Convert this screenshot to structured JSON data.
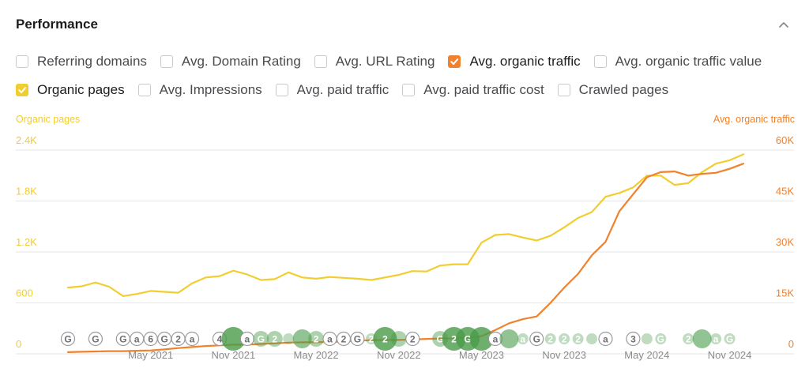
{
  "title": "Performance",
  "collapse_icon": "chevron-up-icon",
  "metrics": [
    [
      {
        "label": "Referring domains",
        "checked": false,
        "color": ""
      },
      {
        "label": "Avg. Domain Rating",
        "checked": false,
        "color": ""
      },
      {
        "label": "Avg. URL Rating",
        "checked": false,
        "color": ""
      },
      {
        "label": "Avg. organic traffic",
        "checked": true,
        "color": "#f0812d"
      },
      {
        "label": "Avg. organic traffic value",
        "checked": false,
        "color": ""
      }
    ],
    [
      {
        "label": "Organic pages",
        "checked": true,
        "color": "#f2cd30"
      },
      {
        "label": "Avg. Impressions",
        "checked": false,
        "color": ""
      },
      {
        "label": "Avg. paid traffic",
        "checked": false,
        "color": ""
      },
      {
        "label": "Avg. paid traffic cost",
        "checked": false,
        "color": ""
      },
      {
        "label": "Crawled pages",
        "checked": false,
        "color": ""
      }
    ]
  ],
  "colors": {
    "organic_pages": "#f2cd30",
    "organic_traffic": "#f0812d",
    "grid": "#e6e6e6",
    "axis_text_month": "#8a8a8e",
    "marker_green": "#4a9b4a"
  },
  "chart_data": {
    "type": "line",
    "left_axis_title": "Organic pages",
    "right_axis_title": "Avg. organic traffic",
    "left_ticks": [
      "0",
      "600",
      "1.2K",
      "1.8K",
      "2.4K"
    ],
    "right_ticks": [
      "0",
      "15K",
      "30K",
      "45K",
      "60K"
    ],
    "left_ylim": [
      0,
      2400
    ],
    "right_ylim": [
      0,
      60000
    ],
    "grid": true,
    "x_labels": [
      "May 2021",
      "Nov 2021",
      "May 2022",
      "Nov 2022",
      "May 2023",
      "Nov 2023",
      "May 2024",
      "Nov 2024"
    ],
    "x_range": [
      "Nov 2020",
      "Dec 2024"
    ],
    "series": [
      {
        "name": "Organic pages",
        "axis": "left",
        "color": "#f2cd30",
        "x": [
          "Nov 2020",
          "Dec 2020",
          "Jan 2021",
          "Feb 2021",
          "Mar 2021",
          "Apr 2021",
          "May 2021",
          "Jun 2021",
          "Jul 2021",
          "Aug 2021",
          "Sep 2021",
          "Oct 2021",
          "Nov 2021",
          "Dec 2021",
          "Jan 2022",
          "Feb 2022",
          "Mar 2022",
          "Apr 2022",
          "May 2022",
          "Jun 2022",
          "Jul 2022",
          "Aug 2022",
          "Sep 2022",
          "Oct 2022",
          "Nov 2022",
          "Dec 2022",
          "Jan 2023",
          "Feb 2023",
          "Mar 2023",
          "Apr 2023",
          "May 2023",
          "Jun 2023",
          "Jul 2023",
          "Aug 2023",
          "Sep 2023",
          "Oct 2023",
          "Nov 2023",
          "Dec 2023",
          "Jan 2024",
          "Feb 2024",
          "Mar 2024",
          "Apr 2024",
          "May 2024",
          "Jun 2024",
          "Jul 2024",
          "Aug 2024",
          "Sep 2024",
          "Oct 2024",
          "Nov 2024",
          "Dec 2024"
        ],
        "values": [
          780,
          795,
          840,
          790,
          680,
          705,
          740,
          730,
          720,
          830,
          900,
          915,
          980,
          935,
          870,
          880,
          960,
          900,
          885,
          905,
          895,
          885,
          870,
          900,
          930,
          975,
          970,
          1040,
          1055,
          1055,
          1310,
          1400,
          1410,
          1370,
          1335,
          1390,
          1490,
          1600,
          1670,
          1850,
          1895,
          1960,
          2100,
          2100,
          1990,
          2010,
          2140,
          2240,
          2280,
          2350
        ]
      },
      {
        "name": "Avg. organic traffic",
        "axis": "right",
        "color": "#f0812d",
        "x": [
          "Nov 2020",
          "Dec 2020",
          "Jan 2021",
          "Feb 2021",
          "Mar 2021",
          "Apr 2021",
          "May 2021",
          "Jun 2021",
          "Jul 2021",
          "Aug 2021",
          "Sep 2021",
          "Oct 2021",
          "Nov 2021",
          "Dec 2021",
          "Jan 2022",
          "Feb 2022",
          "Mar 2022",
          "Apr 2022",
          "May 2022",
          "Jun 2022",
          "Jul 2022",
          "Aug 2022",
          "Sep 2022",
          "Oct 2022",
          "Nov 2022",
          "Dec 2022",
          "Jan 2023",
          "Feb 2023",
          "Mar 2023",
          "Apr 2023",
          "May 2023",
          "Jun 2023",
          "Jul 2023",
          "Aug 2023",
          "Sep 2023",
          "Oct 2023",
          "Nov 2023",
          "Dec 2023",
          "Jan 2024",
          "Feb 2024",
          "Mar 2024",
          "Apr 2024",
          "May 2024",
          "Jun 2024",
          "Jul 2024",
          "Aug 2024",
          "Sep 2024",
          "Oct 2024",
          "Nov 2024",
          "Dec 2024"
        ],
        "values": [
          500,
          600,
          700,
          800,
          800,
          900,
          1000,
          1300,
          1700,
          2000,
          2300,
          2500,
          2700,
          2700,
          2900,
          3100,
          3300,
          3400,
          3400,
          3500,
          3600,
          3900,
          4000,
          4100,
          4100,
          4200,
          4400,
          4500,
          4600,
          4800,
          5200,
          7000,
          9000,
          10200,
          11000,
          15000,
          19500,
          23500,
          29000,
          33000,
          42000,
          47000,
          52000,
          53500,
          53700,
          52500,
          53000,
          53300,
          54500,
          56000
        ]
      }
    ],
    "annotations": [
      {
        "date": "Nov 2020",
        "label": "G",
        "kind": "update"
      },
      {
        "date": "Jan 2021",
        "label": "G",
        "kind": "update"
      },
      {
        "date": "Mar 2021",
        "label": "G",
        "kind": "update"
      },
      {
        "date": "Apr 2021",
        "label": "a",
        "kind": "update"
      },
      {
        "date": "May 2021",
        "label": "6",
        "kind": "update"
      },
      {
        "date": "Jun 2021",
        "label": "G",
        "kind": "update"
      },
      {
        "date": "Jul 2021",
        "label": "2",
        "kind": "update"
      },
      {
        "date": "Aug 2021",
        "label": "a",
        "kind": "update"
      },
      {
        "date": "Oct 2021",
        "label": "4",
        "kind": "update"
      },
      {
        "date": "Nov 2021",
        "label": "",
        "kind": "dot",
        "size": 3
      },
      {
        "date": "Dec 2021",
        "label": "a",
        "kind": "update"
      },
      {
        "date": "Jan 2022",
        "label": "G",
        "kind": "dot",
        "size": 1
      },
      {
        "date": "Feb 2022",
        "label": "2",
        "kind": "dot",
        "size": 1
      },
      {
        "date": "Mar 2022",
        "label": "",
        "kind": "dot",
        "size": 0
      },
      {
        "date": "Apr 2022",
        "label": "",
        "kind": "dot",
        "size": 2
      },
      {
        "date": "May 2022",
        "label": "2",
        "kind": "dot",
        "size": 1
      },
      {
        "date": "Jun 2022",
        "label": "a",
        "kind": "update"
      },
      {
        "date": "Jul 2022",
        "label": "2",
        "kind": "update"
      },
      {
        "date": "Aug 2022",
        "label": "G",
        "kind": "update"
      },
      {
        "date": "Sep 2022",
        "label": "2",
        "kind": "dot",
        "size": 0
      },
      {
        "date": "Oct 2022",
        "label": "2",
        "kind": "dot",
        "size": 3
      },
      {
        "date": "Nov 2022",
        "label": "",
        "kind": "dot",
        "size": 1
      },
      {
        "date": "Dec 2022",
        "label": "2",
        "kind": "update"
      },
      {
        "date": "Feb 2023",
        "label": "G",
        "kind": "dot",
        "size": 1
      },
      {
        "date": "Mar 2023",
        "label": "2",
        "kind": "dot",
        "size": 3
      },
      {
        "date": "Apr 2023",
        "label": "G",
        "kind": "dot",
        "size": 3
      },
      {
        "date": "May 2023",
        "label": "",
        "kind": "dot",
        "size": 3
      },
      {
        "date": "Jun 2023",
        "label": "a",
        "kind": "update"
      },
      {
        "date": "Jul 2023",
        "label": "",
        "kind": "dot",
        "size": 2
      },
      {
        "date": "Aug 2023",
        "label": "a",
        "kind": "dot",
        "size": 0
      },
      {
        "date": "Sep 2023",
        "label": "G",
        "kind": "update"
      },
      {
        "date": "Oct 2023",
        "label": "2",
        "kind": "dot",
        "size": 0
      },
      {
        "date": "Nov 2023",
        "label": "2",
        "kind": "dot",
        "size": 0
      },
      {
        "date": "Dec 2023",
        "label": "2",
        "kind": "dot",
        "size": 0
      },
      {
        "date": "Jan 2024",
        "label": "",
        "kind": "dot",
        "size": 0
      },
      {
        "date": "Feb 2024",
        "label": "a",
        "kind": "update"
      },
      {
        "date": "Apr 2024",
        "label": "3",
        "kind": "update"
      },
      {
        "date": "May 2024",
        "label": "",
        "kind": "dot",
        "size": 0
      },
      {
        "date": "Jun 2024",
        "label": "G",
        "kind": "dot",
        "size": 0
      },
      {
        "date": "Aug 2024",
        "label": "2",
        "kind": "dot",
        "size": 0
      },
      {
        "date": "Sep 2024",
        "label": "",
        "kind": "dot",
        "size": 2
      },
      {
        "date": "Oct 2024",
        "label": "a",
        "kind": "dot",
        "size": 0
      },
      {
        "date": "Nov 2024",
        "label": "G",
        "kind": "dot",
        "size": 0
      }
    ]
  }
}
